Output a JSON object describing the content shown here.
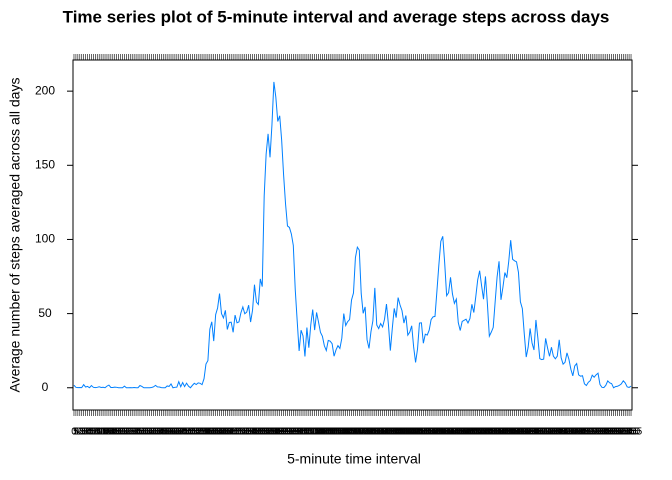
{
  "chart_data": {
    "type": "line",
    "title": "Time series plot of 5-minute interval and average steps across days",
    "x_label": "5-minute time interval",
    "y_label": "Average number of steps averaged across all days",
    "categories": [
      "0",
      "5",
      "10",
      "15",
      "20",
      "25",
      "30",
      "35",
      "40",
      "45",
      "50",
      "55",
      "100",
      "105",
      "110",
      "115",
      "120",
      "125",
      "130",
      "135",
      "140",
      "145",
      "150",
      "155",
      "200",
      "205",
      "210",
      "215",
      "220",
      "225",
      "230",
      "235",
      "240",
      "245",
      "250",
      "255",
      "300",
      "305",
      "310",
      "315",
      "320",
      "325",
      "330",
      "335",
      "340",
      "345",
      "350",
      "355",
      "400",
      "405",
      "410",
      "415",
      "420",
      "425",
      "430",
      "435",
      "440",
      "445",
      "450",
      "455",
      "500",
      "505",
      "510",
      "515",
      "520",
      "525",
      "530",
      "535",
      "540",
      "545",
      "550",
      "555",
      "600",
      "605",
      "610",
      "615",
      "620",
      "625",
      "630",
      "635",
      "640",
      "645",
      "650",
      "655",
      "700",
      "705",
      "710",
      "715",
      "720",
      "725",
      "730",
      "735",
      "740",
      "745",
      "750",
      "755",
      "800",
      "805",
      "810",
      "815",
      "820",
      "825",
      "830",
      "835",
      "840",
      "845",
      "850",
      "855",
      "900",
      "905",
      "910",
      "915",
      "920",
      "925",
      "930",
      "935",
      "940",
      "945",
      "950",
      "955",
      "1000",
      "1005",
      "1010",
      "1015",
      "1020",
      "1025",
      "1030",
      "1035",
      "1040",
      "1045",
      "1050",
      "1055",
      "1100",
      "1105",
      "1110",
      "1115",
      "1120",
      "1125",
      "1130",
      "1135",
      "1140",
      "1145",
      "1150",
      "1155",
      "1200",
      "1205",
      "1210",
      "1215",
      "1220",
      "1225",
      "1230",
      "1235",
      "1240",
      "1245",
      "1250",
      "1255",
      "1300",
      "1305",
      "1310",
      "1315",
      "1320",
      "1325",
      "1330",
      "1335",
      "1340",
      "1345",
      "1350",
      "1355",
      "1400",
      "1405",
      "1410",
      "1415",
      "1420",
      "1425",
      "1430",
      "1435",
      "1440",
      "1445",
      "1450",
      "1455",
      "1500",
      "1505",
      "1510",
      "1515",
      "1520",
      "1525",
      "1530",
      "1535",
      "1540",
      "1545",
      "1550",
      "1555",
      "1600",
      "1605",
      "1610",
      "1615",
      "1620",
      "1625",
      "1630",
      "1635",
      "1640",
      "1645",
      "1650",
      "1655",
      "1700",
      "1705",
      "1710",
      "1715",
      "1720",
      "1725",
      "1730",
      "1735",
      "1740",
      "1745",
      "1750",
      "1755",
      "1800",
      "1805",
      "1810",
      "1815",
      "1820",
      "1825",
      "1830",
      "1835",
      "1840",
      "1845",
      "1850",
      "1855",
      "1900",
      "1905",
      "1910",
      "1915",
      "1920",
      "1925",
      "1930",
      "1935",
      "1940",
      "1945",
      "1950",
      "1955",
      "2000",
      "2005",
      "2010",
      "2015",
      "2020",
      "2025",
      "2030",
      "2035",
      "2040",
      "2045",
      "2050",
      "2055",
      "2100",
      "2105",
      "2110",
      "2115",
      "2120",
      "2125",
      "2130",
      "2135",
      "2140",
      "2145",
      "2150",
      "2155",
      "2200",
      "2205",
      "2210",
      "2215",
      "2220",
      "2225",
      "2230",
      "2235",
      "2240",
      "2245",
      "2250",
      "2255",
      "2300",
      "2305",
      "2310",
      "2315",
      "2320",
      "2325",
      "2330",
      "2335",
      "2340",
      "2345",
      "2350",
      "2355"
    ],
    "values": [
      1.7,
      0.3,
      0.1,
      0.2,
      0.1,
      2.1,
      0.5,
      0.9,
      0,
      1.5,
      0.3,
      0.1,
      0.3,
      0.7,
      0.2,
      0.3,
      0,
      1.1,
      1.8,
      0.2,
      0.2,
      0.4,
      0.3,
      0,
      0,
      0,
      1.1,
      0,
      0,
      0.1,
      0,
      0.2,
      0,
      0,
      1.5,
      0.9,
      0,
      0,
      0,
      0,
      0.2,
      0.6,
      1.6,
      0.6,
      0.5,
      0.1,
      0,
      0,
      1.2,
      0.9,
      2.6,
      0,
      0.3,
      0.4,
      4.1,
      0.7,
      3.5,
      0.8,
      3.1,
      1.1,
      0,
      1.6,
      3.0,
      2.2,
      3.3,
      3.0,
      2.1,
      6.1,
      16.0,
      18.3,
      39.5,
      44.5,
      31.5,
      49.3,
      53.8,
      63.5,
      50.0,
      47.1,
      52.2,
      39.3,
      44.0,
      44.2,
      37.4,
      49.0,
      43.8,
      44.4,
      50.5,
      54.5,
      49.9,
      51.0,
      55.7,
      44.3,
      52.3,
      69.5,
      57.8,
      56.2,
      73.4,
      68.2,
      129.4,
      157.5,
      171.2,
      155.4,
      177.3,
      206.2,
      195.9,
      179.6,
      183.4,
      167.0,
      143.5,
      124.0,
      109.1,
      108.1,
      103.7,
      96.0,
      66.2,
      45.2,
      24.8,
      38.8,
      35.0,
      21.1,
      40.6,
      27.0,
      42.4,
      52.7,
      38.9,
      50.8,
      44.3,
      37.4,
      34.7,
      28.3,
      25.1,
      31.9,
      31.4,
      29.7,
      21.3,
      25.5,
      28.4,
      26.5,
      33.4,
      50.0,
      42.0,
      44.6,
      46.0,
      59.2,
      63.9,
      87.7,
      94.8,
      92.8,
      63.4,
      50.2,
      54.5,
      32.4,
      26.5,
      37.7,
      45.1,
      67.3,
      42.3,
      39.9,
      43.3,
      41.0,
      46.2,
      56.4,
      42.8,
      25.1,
      40.0,
      53.5,
      47.3,
      60.8,
      55.8,
      52.0,
      43.6,
      48.7,
      35.5,
      37.5,
      41.8,
      27.5,
      17.1,
      26.1,
      43.6,
      43.8,
      30.0,
      36.1,
      35.5,
      38.8,
      46.0,
      47.8,
      48.1,
      65.3,
      82.9,
      98.7,
      102.1,
      84.0,
      62.1,
      64.1,
      74.5,
      63.2,
      56.9,
      59.8,
      43.9,
      38.6,
      44.7,
      45.5,
      46.2,
      43.7,
      46.6,
      56.3,
      50.7,
      61.2,
      72.7,
      78.9,
      68.9,
      59.7,
      75.1,
      56.5,
      34.8,
      37.5,
      40.7,
      58.0,
      74.7,
      85.3,
      59.3,
      67.8,
      77.7,
      74.2,
      85.3,
      99.5,
      86.6,
      85.6,
      84.9,
      77.8,
      58.0,
      53.4,
      36.3,
      20.7,
      27.4,
      40.0,
      30.2,
      25.5,
      45.7,
      33.5,
      19.6,
      19.0,
      19.3,
      33.3,
      26.8,
      21.2,
      27.3,
      21.3,
      19.5,
      21.3,
      32.3,
      20.2,
      15.9,
      17.2,
      23.5,
      19.2,
      12.5,
      8.0,
      14.7,
      16.3,
      8.7,
      7.8,
      8.1,
      2.6,
      1.5,
      3.7,
      4.8,
      8.5,
      7.1,
      8.7,
      9.8,
      2.2,
      0.3,
      0.1,
      1.6,
      4.6,
      3.3,
      2.8,
      0,
      0.8,
      1.0,
      1.6,
      2.6,
      4.7,
      3.3,
      0.6,
      0.2,
      1.1
    ],
    "color": "#0080ff",
    "ylim": [
      -15,
      221
    ],
    "yticks": [
      0,
      50,
      100,
      150,
      200
    ]
  }
}
